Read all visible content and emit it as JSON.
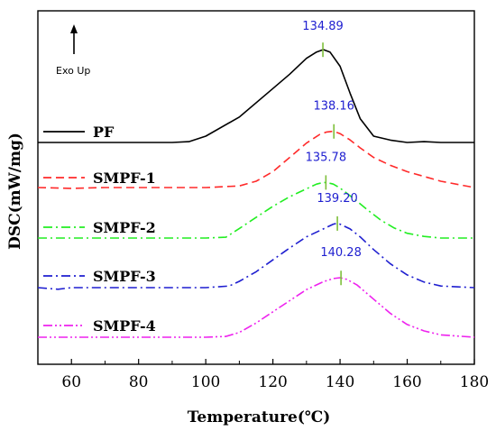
{
  "chart_data": {
    "type": "line",
    "xlabel": "Temperature(℃)",
    "ylabel": "DSC(mW/mg)",
    "xlim": [
      50,
      180
    ],
    "xticks": [
      60,
      80,
      100,
      120,
      140,
      160,
      180
    ],
    "y_ticks_shown": false,
    "grid": false,
    "legend_position": "left",
    "annotation": "Exo Up",
    "peak_label_color": "#1f1fd0",
    "series": [
      {
        "name": "PF",
        "color": "#000000",
        "dash": "solid",
        "peak_label": "134.89",
        "peak_x": 134.89,
        "x": [
          50,
          70,
          90,
          95,
          100,
          110,
          120,
          125,
          130,
          133,
          135,
          137,
          140,
          143,
          146,
          150,
          155,
          160,
          165,
          170,
          180
        ],
        "y": [
          0.0,
          0.0,
          0.0,
          0.1,
          0.8,
          3.2,
          6.8,
          8.6,
          10.6,
          11.4,
          11.7,
          11.4,
          9.6,
          6.2,
          3.0,
          0.8,
          0.3,
          0.0,
          0.1,
          0.0,
          0.0
        ]
      },
      {
        "name": "SMPF-1",
        "color": "#ff2a2a",
        "dash": "dashed",
        "peak_label": "138.16",
        "peak_x": 138.16,
        "x": [
          50,
          60,
          70,
          80,
          90,
          100,
          110,
          115,
          120,
          125,
          130,
          134,
          136,
          138,
          140,
          143,
          146,
          150,
          155,
          160,
          165,
          170,
          180
        ],
        "y": [
          0.0,
          -0.1,
          0.0,
          0.0,
          0.0,
          0.0,
          0.2,
          0.8,
          2.0,
          3.8,
          5.6,
          6.7,
          7.0,
          7.1,
          6.8,
          6.0,
          5.0,
          3.8,
          2.8,
          2.0,
          1.4,
          0.8,
          0.0
        ]
      },
      {
        "name": "SMPF-2",
        "color": "#22ee22",
        "dash": "dashdot",
        "peak_label": "135.78",
        "peak_x": 135.78,
        "x": [
          50,
          60,
          70,
          80,
          90,
          100,
          106,
          110,
          115,
          120,
          125,
          130,
          133,
          135,
          136,
          138,
          140,
          144,
          148,
          152,
          156,
          160,
          165,
          170,
          180
        ],
        "y": [
          0.0,
          0.0,
          0.0,
          0.0,
          0.0,
          0.0,
          0.1,
          1.2,
          2.6,
          4.0,
          5.2,
          6.2,
          6.8,
          7.0,
          7.0,
          6.8,
          6.3,
          5.0,
          3.6,
          2.3,
          1.3,
          0.6,
          0.2,
          0.0,
          0.0
        ]
      },
      {
        "name": "SMPF-3",
        "color": "#1f1fd0",
        "dash": "dashdot",
        "peak_label": "139.20",
        "peak_x": 139.2,
        "x": [
          50,
          56,
          60,
          70,
          80,
          90,
          100,
          107,
          110,
          115,
          120,
          125,
          130,
          135,
          138,
          139,
          140,
          143,
          146,
          150,
          155,
          160,
          165,
          170,
          180
        ],
        "y": [
          0.0,
          -0.2,
          0.0,
          0.0,
          0.0,
          0.0,
          0.0,
          0.2,
          0.8,
          2.0,
          3.5,
          5.0,
          6.4,
          7.4,
          8.0,
          8.1,
          8.0,
          7.4,
          6.4,
          4.8,
          3.0,
          1.6,
          0.7,
          0.2,
          0.0
        ]
      },
      {
        "name": "SMPF-4",
        "color": "#ee22ee",
        "dash": "dashdotdot",
        "peak_label": "140.28",
        "peak_x": 140.28,
        "x": [
          50,
          60,
          70,
          80,
          90,
          100,
          106,
          110,
          115,
          120,
          125,
          130,
          135,
          138,
          140,
          142,
          145,
          150,
          155,
          160,
          165,
          170,
          180
        ],
        "y": [
          0.0,
          0.0,
          0.0,
          0.0,
          0.0,
          0.0,
          0.1,
          0.6,
          1.8,
          3.2,
          4.6,
          6.0,
          7.0,
          7.4,
          7.5,
          7.3,
          6.6,
          4.8,
          3.0,
          1.6,
          0.8,
          0.3,
          0.0
        ]
      }
    ]
  }
}
